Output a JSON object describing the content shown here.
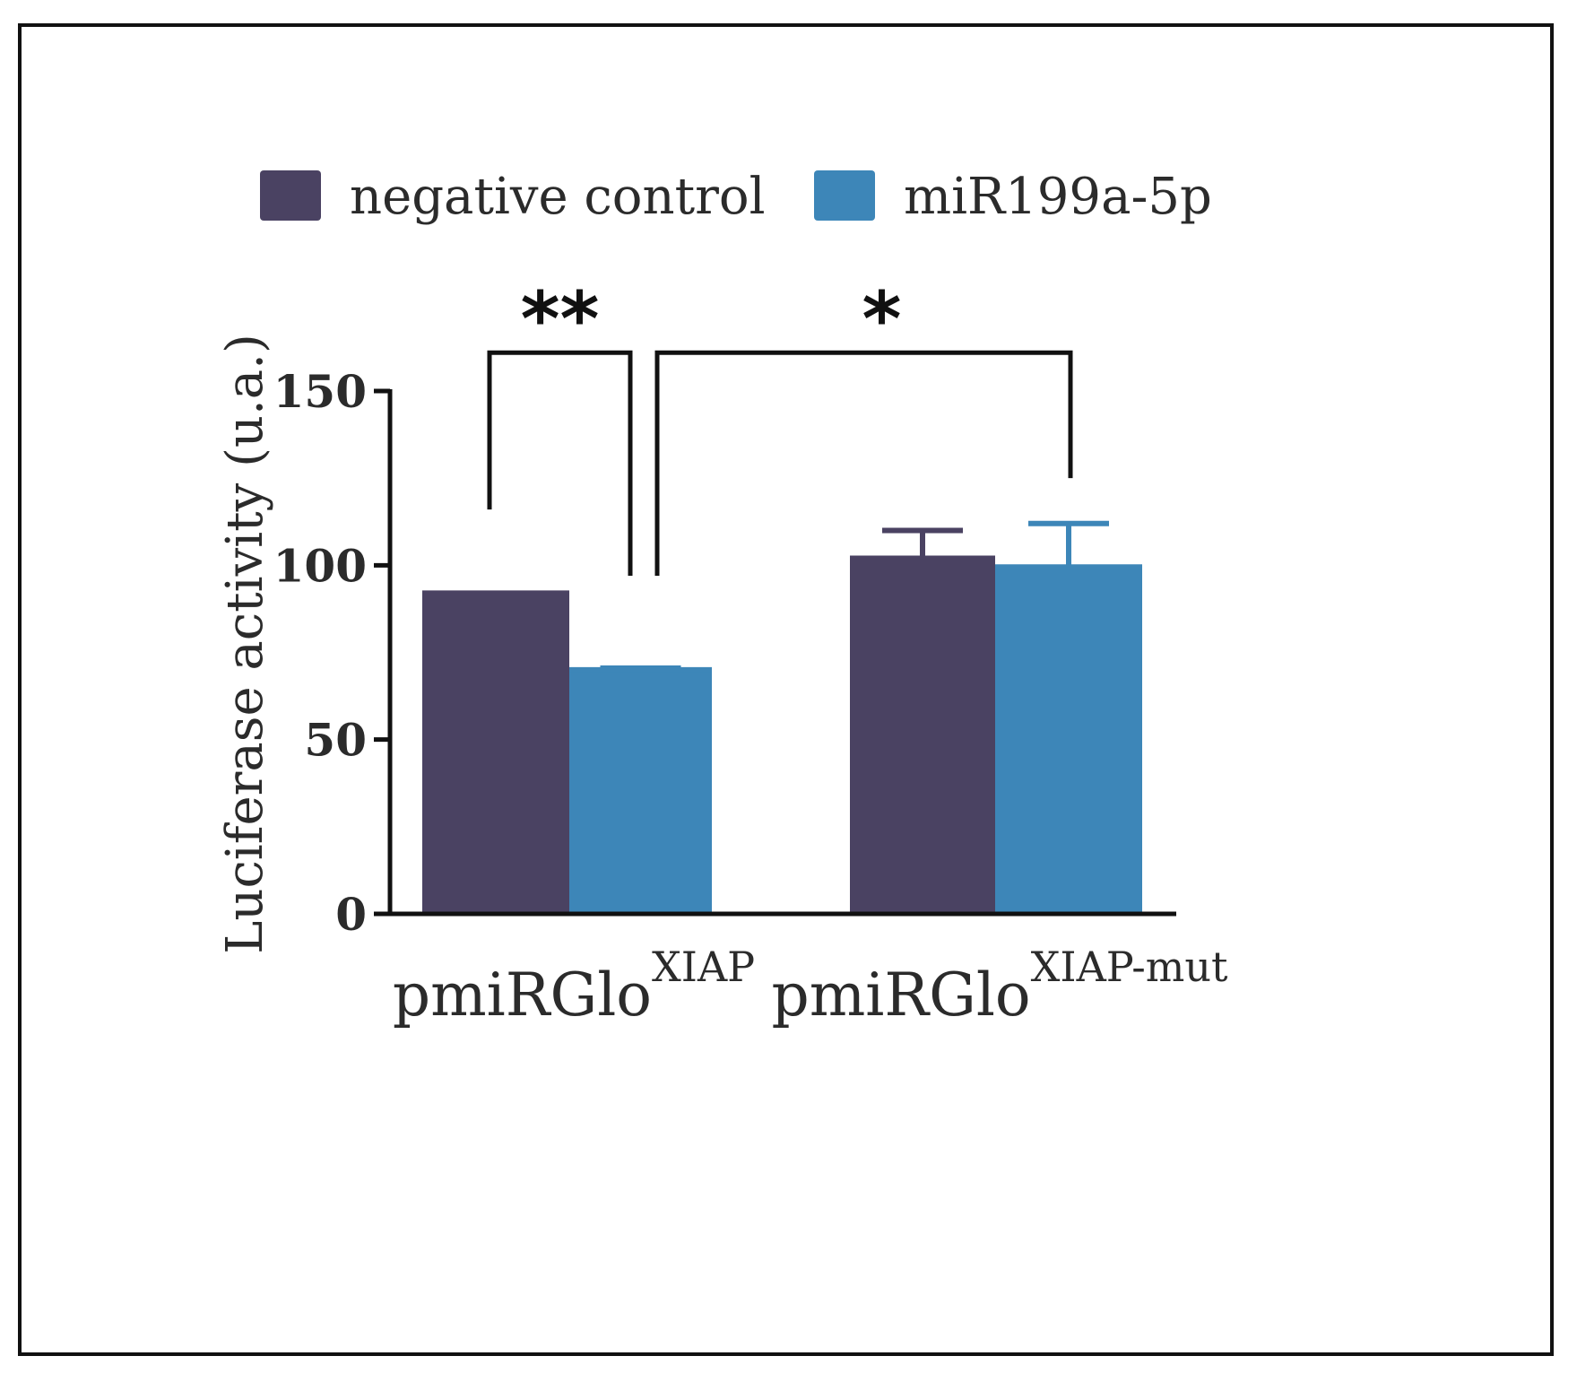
{
  "chart_data": {
    "type": "bar",
    "title": "",
    "xlabel": "",
    "ylabel": "Luciferase activity (u.a.)",
    "ylim": [
      0,
      150
    ],
    "yticks": [
      0,
      50,
      100,
      150
    ],
    "ytick_labels": [
      "0",
      "50",
      "100",
      "150"
    ],
    "grid": false,
    "legend_position": "top",
    "categories": [
      {
        "base": "pmiRGlo",
        "sup": "XIAP"
      },
      {
        "base": "pmiRGlo",
        "sup": "XIAP-mut"
      }
    ],
    "series": [
      {
        "name": "negative control",
        "color": "#4a4262",
        "values": [
          92,
          102
        ],
        "errors": [
          0,
          8
        ]
      },
      {
        "name": "miR199a-5p",
        "color": "#3d86b8",
        "values": [
          70,
          99.5
        ],
        "errors": [
          0.5,
          12.5
        ]
      }
    ],
    "significance": [
      {
        "label": "**",
        "left": [
          0,
          0
        ],
        "right": [
          0,
          1
        ],
        "bracket_y": 161,
        "left_y": 116,
        "right_y": 97
      },
      {
        "label": "*",
        "left": [
          0,
          1
        ],
        "right": [
          1,
          1
        ],
        "bracket_y": 161,
        "left_y": 97,
        "right_y": 125
      }
    ]
  },
  "colors": {
    "axis": "#111111",
    "frame": "#111111",
    "text": "#2b2b2b"
  }
}
